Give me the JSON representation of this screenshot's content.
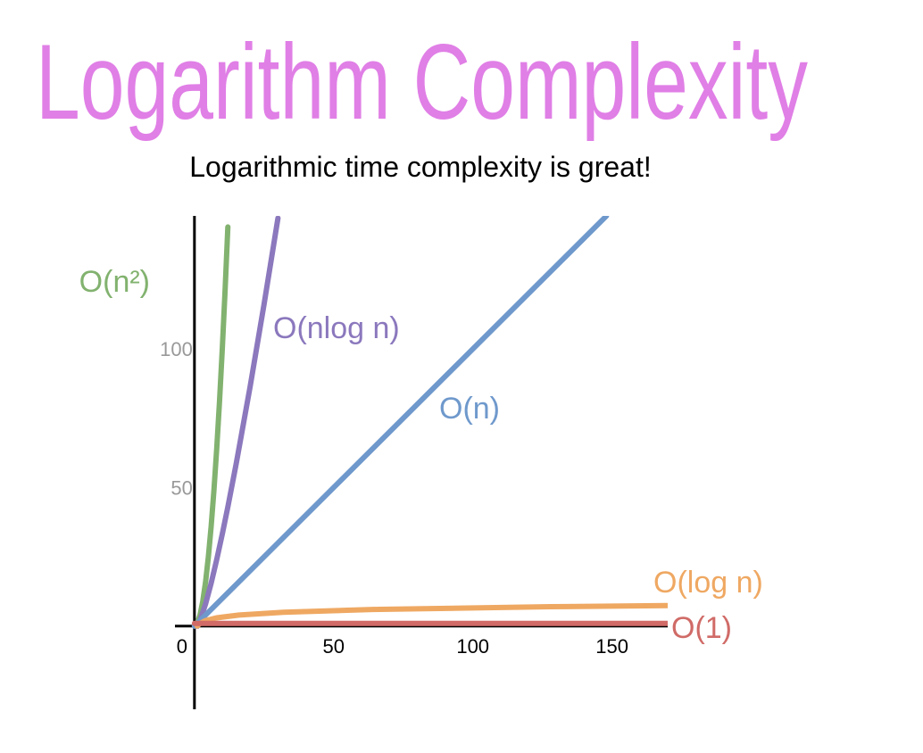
{
  "chart_data": {
    "type": "line",
    "title": "Logarithm Complexity",
    "subtitle": "Logarithmic time complexity is great!",
    "xlim": [
      -7,
      170
    ],
    "ylim": [
      -30,
      148
    ],
    "xticks": [
      0,
      50,
      100,
      150
    ],
    "yticks": [
      50,
      100
    ],
    "series": [
      {
        "name": "O(n²)",
        "color": "#82b26f",
        "x": [
          0,
          1,
          2,
          3,
          4,
          5,
          6,
          7,
          8,
          9,
          10,
          11,
          12
        ],
        "values": [
          0,
          1,
          4,
          9,
          16,
          25,
          36,
          49,
          64,
          81,
          100,
          121,
          144
        ]
      },
      {
        "name": "O(nlog n)",
        "color": "#8b78bd",
        "x": [
          0,
          1,
          2,
          4,
          6,
          8,
          10,
          12,
          15,
          20,
          25,
          30
        ],
        "values": [
          0,
          0,
          2,
          8,
          15.5,
          24,
          33.2,
          43,
          58.6,
          86.4,
          116.1,
          147.2
        ]
      },
      {
        "name": "O(n)",
        "color": "#6f99cc",
        "x": [
          0,
          148
        ],
        "values": [
          0,
          148
        ]
      },
      {
        "name": "O(log n)",
        "color": "#efa862",
        "x": [
          1,
          2,
          4,
          8,
          16,
          32,
          64,
          128,
          170
        ],
        "values": [
          0,
          1,
          2,
          3,
          4,
          5,
          6,
          7,
          7.4
        ]
      },
      {
        "name": "O(1)",
        "color": "#d06b67",
        "x": [
          0,
          170
        ],
        "values": [
          1,
          1
        ]
      }
    ]
  }
}
